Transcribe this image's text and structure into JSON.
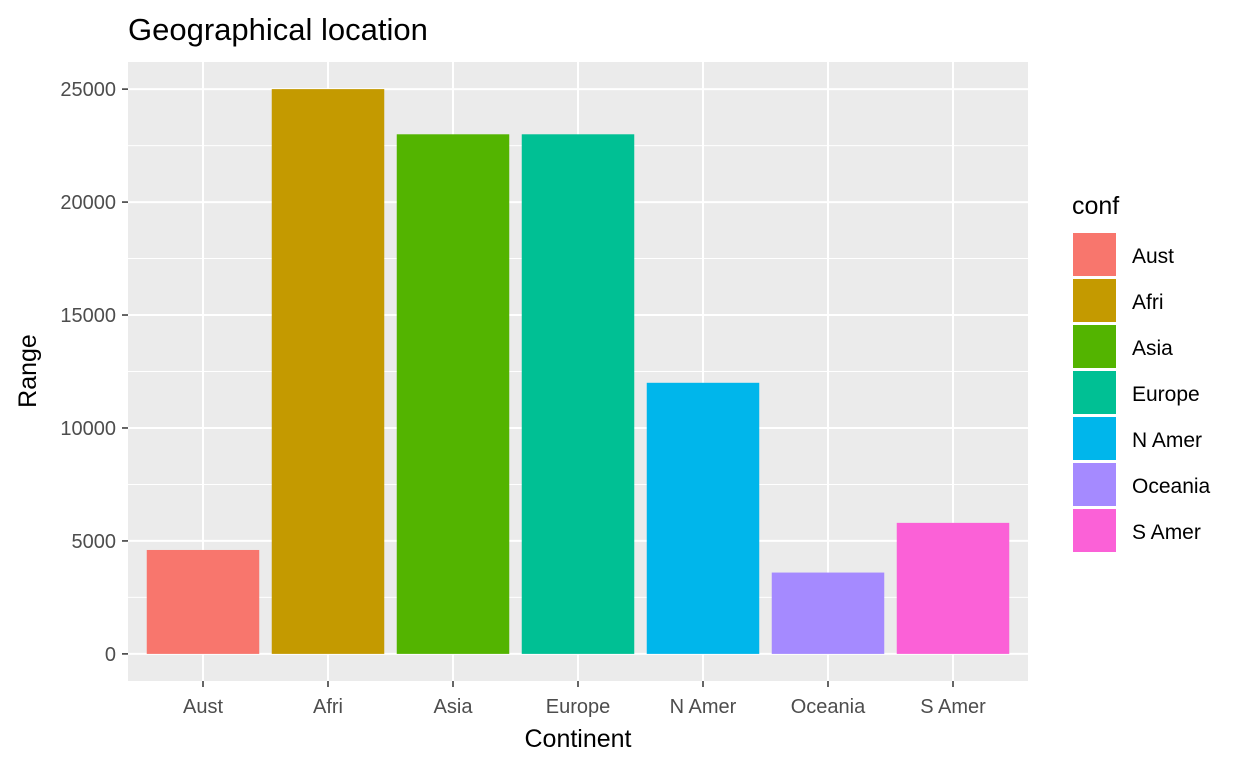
{
  "chart_data": {
    "type": "bar",
    "title": "Geographical location",
    "xlabel": "Continent",
    "ylabel": "Range",
    "categories": [
      "Aust",
      "Afri",
      "Asia",
      "Europe",
      "N Amer",
      "Oceania",
      "S Amer"
    ],
    "values": [
      4600,
      25000,
      23000,
      23000,
      12000,
      3600,
      5800
    ],
    "colors": [
      "#F8766D",
      "#C49A00",
      "#53B400",
      "#00C094",
      "#00B6EB",
      "#A58AFF",
      "#FB61D7"
    ],
    "ylim": [
      -1200,
      26200
    ],
    "yticks": [
      0,
      5000,
      10000,
      15000,
      20000,
      25000
    ],
    "ytick_labels": [
      "0",
      "5000",
      "10000",
      "15000",
      "20000",
      "25000"
    ],
    "grid": true,
    "panel_background": "#EBEBEB",
    "legend": {
      "title": "conf",
      "placement": "right",
      "items": [
        "Aust",
        "Afri",
        "Asia",
        "Europe",
        "N Amer",
        "Oceania",
        "S Amer"
      ]
    }
  }
}
